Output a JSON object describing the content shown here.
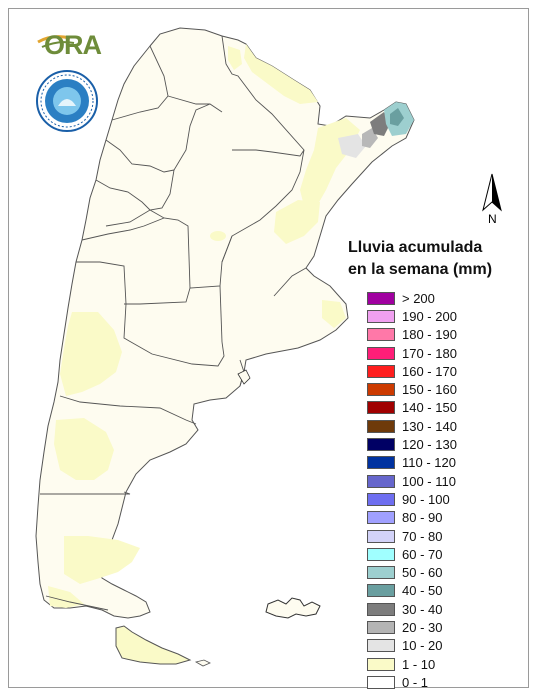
{
  "map": {
    "logo_text": "ORA",
    "seal_text": "SERVICIO METEOROLÓGICO NACIONAL · ARGENTINA",
    "north_label": "N",
    "colors": {
      "land": "#fefcf0",
      "border": "#5a5a5a",
      "light_yellow": "#fafac8",
      "light_gray": "#e4e4e4",
      "mid_gray": "#bcbcbc",
      "teal_light": "#9dcfcf",
      "teal_dark": "#6a9fa0",
      "dark_gray": "#7d7d7d"
    }
  },
  "legend": {
    "title_line1": "Lluvia acumulada",
    "title_line2": "en la semana (mm)",
    "items": [
      {
        "label": "> 200",
        "color": "#a000a0"
      },
      {
        "label": "190 - 200",
        "color": "#f0a0f0"
      },
      {
        "label": "180 - 190",
        "color": "#ff78a8"
      },
      {
        "label": "170 - 180",
        "color": "#ff1e78"
      },
      {
        "label": "160 - 170",
        "color": "#ff1e1e"
      },
      {
        "label": "150 - 160",
        "color": "#cc3a00"
      },
      {
        "label": "140 - 150",
        "color": "#a00000"
      },
      {
        "label": "130 - 140",
        "color": "#6e3a0a"
      },
      {
        "label": "120 - 130",
        "color": "#000064"
      },
      {
        "label": "110 - 120",
        "color": "#0032a0"
      },
      {
        "label": "100 - 110",
        "color": "#6666cc"
      },
      {
        "label": "90 - 100",
        "color": "#6e6ef0"
      },
      {
        "label": "80 - 90",
        "color": "#a0a0ff"
      },
      {
        "label": "70 - 80",
        "color": "#d2d2f8"
      },
      {
        "label": "60 - 70",
        "color": "#a0ffff"
      },
      {
        "label": "50 - 60",
        "color": "#9dcfcf"
      },
      {
        "label": "40 - 50",
        "color": "#6a9fa0"
      },
      {
        "label": "30 - 40",
        "color": "#7d7d7d"
      },
      {
        "label": "20 - 30",
        "color": "#b4b4b4"
      },
      {
        "label": "10 - 20",
        "color": "#e4e4e4"
      },
      {
        "label": "1 - 10",
        "color": "#fafac8"
      },
      {
        "label": "0 - 1",
        "color": "#ffffff"
      }
    ]
  }
}
